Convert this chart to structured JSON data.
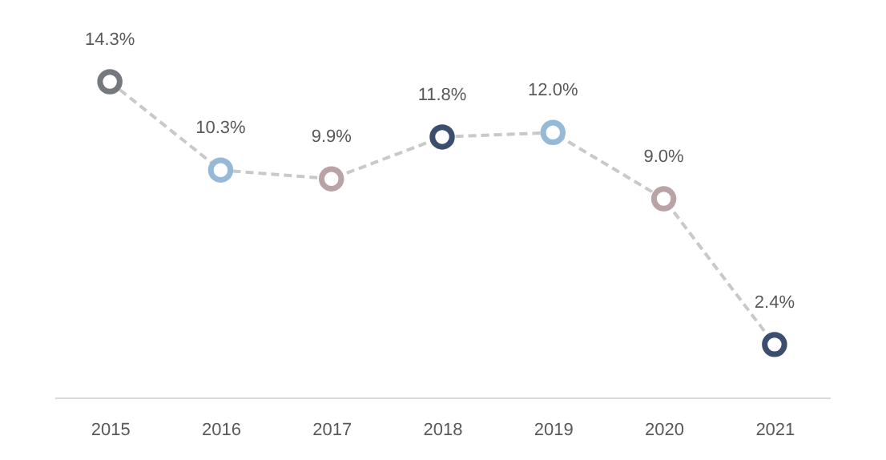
{
  "chart_data": {
    "type": "line",
    "categories": [
      "2015",
      "2016",
      "2017",
      "2018",
      "2019",
      "2020",
      "2021"
    ],
    "values": [
      14.3,
      10.3,
      9.9,
      11.8,
      12.0,
      9.0,
      2.4
    ],
    "value_labels": [
      "14.3%",
      "10.3%",
      "9.9%",
      "11.8%",
      "12.0%",
      "9.0%",
      "2.4%"
    ],
    "color": "#c9c9c9",
    "colors": [
      "#76787f",
      "#95b9d6",
      "#b9a3a6",
      "#3b4e6e",
      "#95b9d6",
      "#b9a3a6",
      "#3b4e6e"
    ],
    "marker": "circle",
    "line_style": "dashed",
    "grid": false,
    "legend": false
  }
}
